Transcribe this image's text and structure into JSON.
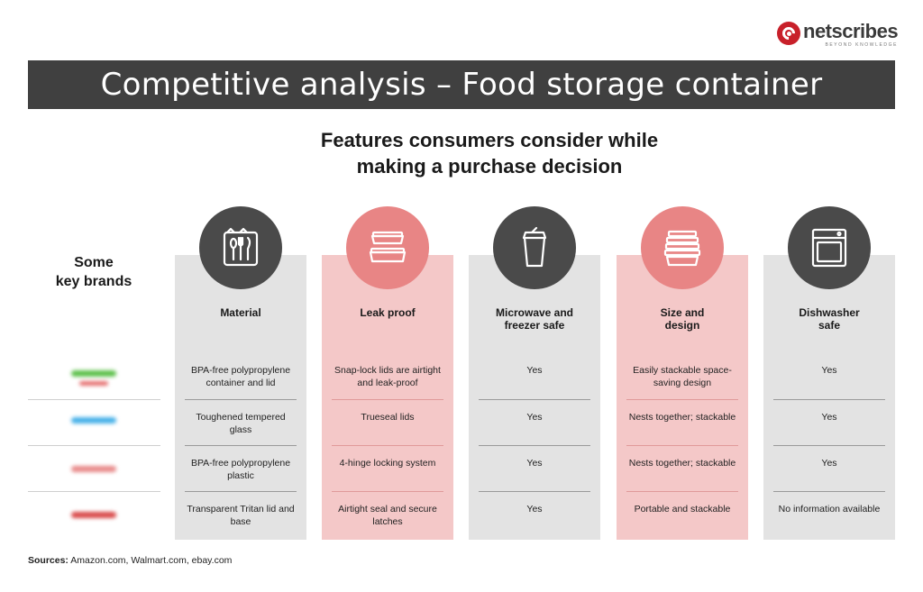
{
  "logo": {
    "name": "netscribes",
    "tagline": "BEYOND KNOWLEDGE"
  },
  "title": "Competitive analysis – Food storage container",
  "subtitle_line1": "Features consumers consider while",
  "subtitle_line2": "making a purchase decision",
  "brands_label_line1": "Some",
  "brands_label_line2": "key brands",
  "brand_colors": [
    "#5cc04a",
    "#e56b6b",
    "#45b0e8",
    "#e88a8a",
    "#d94a4a"
  ],
  "columns": [
    {
      "header": "Material",
      "icon": "utensils-icon",
      "cells": [
        "BPA-free polypropylene container and lid",
        "Toughened tempered glass",
        "BPA-free polypropylene plastic",
        "Transparent Tritan lid and base"
      ]
    },
    {
      "header": "Leak proof",
      "icon": "stacked-containers-icon",
      "cells": [
        "Snap-lock lids are airtight and leak-proof",
        "Trueseal lids",
        "4-hinge locking system",
        "Airtight seal and secure latches"
      ]
    },
    {
      "header_line1": "Microwave and",
      "header_line2": "freezer safe",
      "icon": "cup-icon",
      "cells": [
        "Yes",
        "Yes",
        "Yes",
        "Yes"
      ]
    },
    {
      "header_line1": "Size and",
      "header_line2": "design",
      "icon": "stack-icon",
      "cells": [
        "Easily stackable space-saving design",
        "Nests together; stackable",
        "Nests together; stackable",
        "Portable and stackable"
      ]
    },
    {
      "header_line1": "Dishwasher",
      "header_line2": "safe",
      "icon": "dishwasher-icon",
      "cells": [
        "Yes",
        "Yes",
        "Yes",
        "No information available"
      ]
    }
  ],
  "sources_label": "Sources:",
  "sources_text": " Amazon.com, Walmart.com, ebay.com"
}
